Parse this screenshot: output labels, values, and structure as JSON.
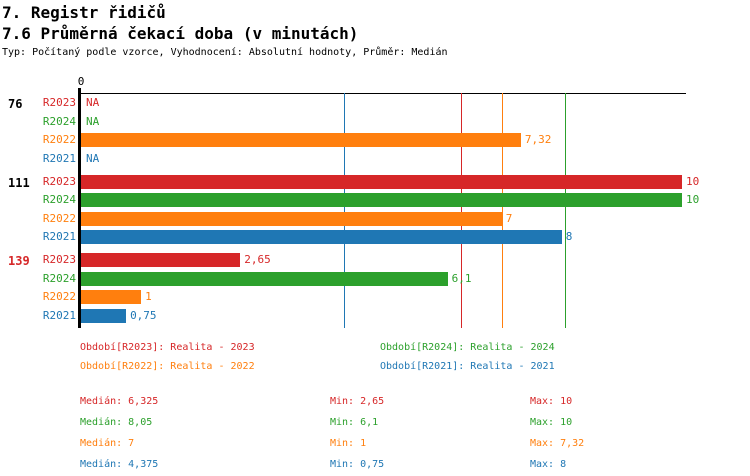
{
  "header": {
    "title": "7. Registr řidičů",
    "subtitle": "7.6 Průměrná čekací doba (v minutách)",
    "meta": "Typ: Počítaný podle vzorce, Vyhodnocení: Absolutní hodnoty, Průměr: Medián"
  },
  "colors": {
    "R2023": "#d62728",
    "R2024": "#2ca02c",
    "R2022": "#ff7f0e",
    "R2021": "#1f77b4",
    "axis": "#000000",
    "highlight_group": "#d62728"
  },
  "chart_data": {
    "type": "bar",
    "orientation": "horizontal",
    "title": "7.6 Průměrná čekací doba (v minutách)",
    "x_axis": {
      "origin_label": "0",
      "min": 0,
      "max": 10.1,
      "grid": false
    },
    "series_order": [
      "R2023",
      "R2024",
      "R2022",
      "R2021"
    ],
    "groups": [
      {
        "label": "76",
        "label_color": "#000000",
        "rows": [
          {
            "series": "R2023",
            "value": null,
            "display": "NA"
          },
          {
            "series": "R2024",
            "value": null,
            "display": "NA"
          },
          {
            "series": "R2022",
            "value": 7.32,
            "display": "7,32"
          },
          {
            "series": "R2021",
            "value": null,
            "display": "NA"
          }
        ]
      },
      {
        "label": "111",
        "label_color": "#000000",
        "rows": [
          {
            "series": "R2023",
            "value": 10,
            "display": "10"
          },
          {
            "series": "R2024",
            "value": 10,
            "display": "10"
          },
          {
            "series": "R2022",
            "value": 7,
            "display": "7"
          },
          {
            "series": "R2021",
            "value": 8,
            "display": "8"
          }
        ]
      },
      {
        "label": "139",
        "label_color": "#d62728",
        "rows": [
          {
            "series": "R2023",
            "value": 2.65,
            "display": "2,65"
          },
          {
            "series": "R2024",
            "value": 6.1,
            "display": "6,1"
          },
          {
            "series": "R2022",
            "value": 1,
            "display": "1"
          },
          {
            "series": "R2021",
            "value": 0.75,
            "display": "0,75"
          }
        ]
      }
    ],
    "median_lines": [
      {
        "series": "R2021",
        "value": 4.375
      },
      {
        "series": "R2023",
        "value": 6.325
      },
      {
        "series": "R2022",
        "value": 7
      },
      {
        "series": "R2024",
        "value": 8.05
      }
    ]
  },
  "legend": [
    {
      "series": "R2023",
      "text": "Období[R2023]: Realita - 2023",
      "row": 0,
      "col": 0
    },
    {
      "series": "R2024",
      "text": "Období[R2024]: Realita - 2024",
      "row": 0,
      "col": 1
    },
    {
      "series": "R2022",
      "text": "Období[R2022]: Realita - 2022",
      "row": 1,
      "col": 0
    },
    {
      "series": "R2021",
      "text": "Období[R2021]: Realita - 2021",
      "row": 1,
      "col": 1
    }
  ],
  "stats": [
    {
      "series": "R2023",
      "median": "Medián: 6,325",
      "min": "Min: 2,65",
      "max": "Max: 10"
    },
    {
      "series": "R2024",
      "median": "Medián: 8,05",
      "min": "Min: 6,1",
      "max": "Max: 10"
    },
    {
      "series": "R2022",
      "median": "Medián: 7",
      "min": "Min: 1",
      "max": "Max: 7,32"
    },
    {
      "series": "R2021",
      "median": "Medián: 4,375",
      "min": "Min: 0,75",
      "max": "Max: 8"
    }
  ]
}
